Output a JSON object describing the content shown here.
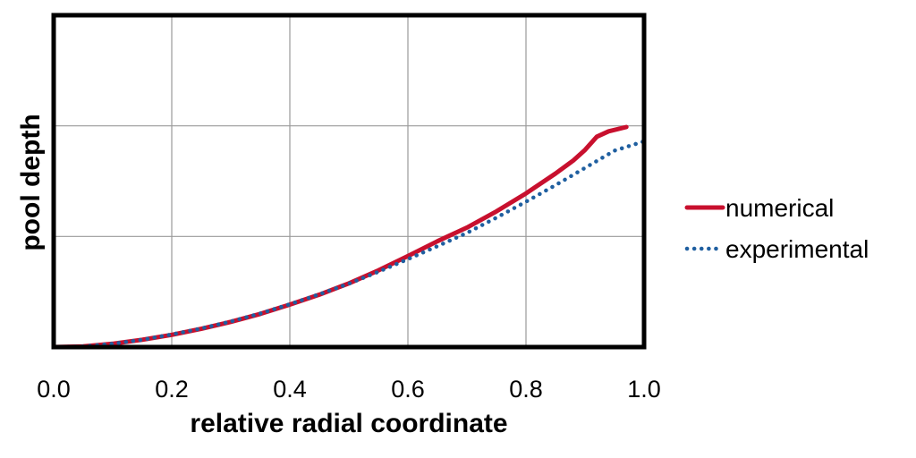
{
  "chart_data": {
    "type": "line",
    "title": "",
    "xlabel": "relative radial coordinate",
    "ylabel": "pool depth",
    "xlim": [
      0.0,
      1.0
    ],
    "ylim": [
      0,
      1
    ],
    "x_ticks": [
      "0.0",
      "0.2",
      "0.4",
      "0.6",
      "0.8",
      "1.0"
    ],
    "y_tick_labels_shown": false,
    "grid": true,
    "legend_position": "right",
    "series": [
      {
        "name": "numerical",
        "color": "#c8102e",
        "style": "solid",
        "points": [
          [
            0.0,
            0.0
          ],
          [
            0.05,
            0.002
          ],
          [
            0.1,
            0.01
          ],
          [
            0.15,
            0.022
          ],
          [
            0.2,
            0.037
          ],
          [
            0.25,
            0.055
          ],
          [
            0.3,
            0.076
          ],
          [
            0.35,
            0.1
          ],
          [
            0.4,
            0.128
          ],
          [
            0.45,
            0.158
          ],
          [
            0.5,
            0.192
          ],
          [
            0.55,
            0.231
          ],
          [
            0.6,
            0.274
          ],
          [
            0.65,
            0.319
          ],
          [
            0.7,
            0.36
          ],
          [
            0.75,
            0.409
          ],
          [
            0.8,
            0.463
          ],
          [
            0.85,
            0.523
          ],
          [
            0.88,
            0.562
          ],
          [
            0.9,
            0.594
          ],
          [
            0.92,
            0.634
          ],
          [
            0.94,
            0.65
          ],
          [
            0.97,
            0.663
          ]
        ]
      },
      {
        "name": "experimental",
        "color": "#1f5fa0",
        "style": "dotted",
        "points": [
          [
            0.0,
            0.0
          ],
          [
            0.05,
            0.002
          ],
          [
            0.1,
            0.01
          ],
          [
            0.15,
            0.022
          ],
          [
            0.2,
            0.038
          ],
          [
            0.25,
            0.056
          ],
          [
            0.3,
            0.077
          ],
          [
            0.35,
            0.101
          ],
          [
            0.4,
            0.129
          ],
          [
            0.45,
            0.159
          ],
          [
            0.5,
            0.191
          ],
          [
            0.55,
            0.227
          ],
          [
            0.6,
            0.265
          ],
          [
            0.65,
            0.304
          ],
          [
            0.7,
            0.344
          ],
          [
            0.75,
            0.39
          ],
          [
            0.8,
            0.438
          ],
          [
            0.85,
            0.488
          ],
          [
            0.9,
            0.54
          ],
          [
            0.95,
            0.592
          ],
          [
            1.0,
            0.62
          ]
        ]
      }
    ]
  }
}
